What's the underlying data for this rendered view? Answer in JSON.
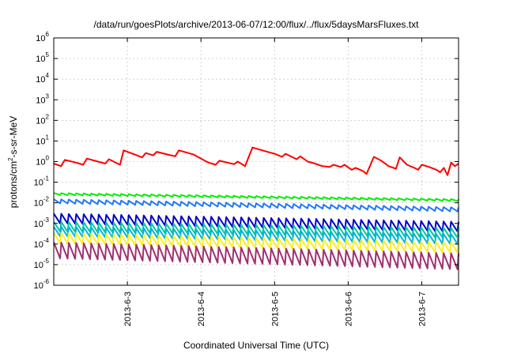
{
  "chart_data": {
    "type": "line",
    "title": "/data/run/goesPlots/archive/2013-06-07/12:00/flux/../flux/5daysMarsFluxes.txt",
    "xlabel": "Coordinated Universal Time (UTC)",
    "ylabel": {
      "base": "protons/cm",
      "sup": "2",
      "rest": "-s-sr-MeV"
    },
    "y_scale": "log",
    "ylim_exp": [
      -6,
      6
    ],
    "y_ticks": [
      {
        "base": "10",
        "exp": "-6",
        "e": -6
      },
      {
        "base": "10",
        "exp": "-5",
        "e": -5
      },
      {
        "base": "10",
        "exp": "-4",
        "e": -4
      },
      {
        "base": "10",
        "exp": "-3",
        "e": -3
      },
      {
        "base": "10",
        "exp": "-2",
        "e": -2
      },
      {
        "base": "10",
        "exp": "-1",
        "e": -1
      },
      {
        "base": "10",
        "exp": "0",
        "e": 0
      },
      {
        "base": "10",
        "exp": "1",
        "e": 1
      },
      {
        "base": "10",
        "exp": "2",
        "e": 2
      },
      {
        "base": "10",
        "exp": "3",
        "e": 3
      },
      {
        "base": "10",
        "exp": "4",
        "e": 4
      },
      {
        "base": "10",
        "exp": "5",
        "e": 5
      },
      {
        "base": "10",
        "exp": "6",
        "e": 6
      }
    ],
    "xlim": [
      "2013-06-02 00:00",
      "2013-06-07 12:00"
    ],
    "x_ticks": [
      "2013-6-3",
      "2013-6-4",
      "2013-6-5",
      "2013-6-6",
      "2013-6-7"
    ],
    "x_tick_dates": [
      "2013-06-03",
      "2013-06-04",
      "2013-06-05",
      "2013-06-06",
      "2013-06-07"
    ],
    "grid": true,
    "legend": "none",
    "series": [
      {
        "color": "#ff0000",
        "values": [
          [
            "2013-06-02 00:00",
            0.8
          ],
          [
            "2013-06-02 02:24",
            0.6
          ],
          [
            "2013-06-02 03:36",
            1.2
          ],
          [
            "2013-06-02 07:12",
            0.9
          ],
          [
            "2013-06-02 09:36",
            0.7
          ],
          [
            "2013-06-02 10:48",
            1.4
          ],
          [
            "2013-06-02 14:24",
            1.0
          ],
          [
            "2013-06-02 16:48",
            0.8
          ],
          [
            "2013-06-02 18:00",
            1.3
          ],
          [
            "2013-06-02 21:36",
            0.7
          ],
          [
            "2013-06-02 22:48",
            3.5
          ],
          [
            "2013-06-03 02:24",
            2.2
          ],
          [
            "2013-06-03 04:48",
            1.6
          ],
          [
            "2013-06-03 06:00",
            2.6
          ],
          [
            "2013-06-03 08:24",
            2.0
          ],
          [
            "2013-06-03 09:36",
            3.0
          ],
          [
            "2013-06-03 13:12",
            2.2
          ],
          [
            "2013-06-03 15:36",
            1.8
          ],
          [
            "2013-06-03 16:48",
            3.5
          ],
          [
            "2013-06-03 21:36",
            2.2
          ],
          [
            "2013-06-04 00:00",
            1.4
          ],
          [
            "2013-06-04 02:24",
            0.9
          ],
          [
            "2013-06-04 04:48",
            0.7
          ],
          [
            "2013-06-04 06:00",
            1.1
          ],
          [
            "2013-06-04 10:48",
            0.75
          ],
          [
            "2013-06-04 12:00",
            1.0
          ],
          [
            "2013-06-04 14:24",
            0.6
          ],
          [
            "2013-06-04 16:48",
            4.8
          ],
          [
            "2013-06-04 21:36",
            3.0
          ],
          [
            "2013-06-05 00:00",
            2.4
          ],
          [
            "2013-06-05 02:24",
            1.7
          ],
          [
            "2013-06-05 03:36",
            2.4
          ],
          [
            "2013-06-05 07:12",
            1.3
          ],
          [
            "2013-06-05 08:24",
            1.8
          ],
          [
            "2013-06-05 10:48",
            1.0
          ],
          [
            "2013-06-05 13:12",
            0.8
          ],
          [
            "2013-06-05 15:36",
            0.6
          ],
          [
            "2013-06-05 18:00",
            0.55
          ],
          [
            "2013-06-05 19:12",
            0.7
          ],
          [
            "2013-06-05 21:36",
            0.55
          ],
          [
            "2013-06-05 22:48",
            0.7
          ],
          [
            "2013-06-06 01:12",
            0.4
          ],
          [
            "2013-06-06 02:24",
            0.5
          ],
          [
            "2013-06-06 04:48",
            0.35
          ],
          [
            "2013-06-06 06:00",
            0.25
          ],
          [
            "2013-06-06 08:24",
            1.7
          ],
          [
            "2013-06-06 10:48",
            1.1
          ],
          [
            "2013-06-06 13:12",
            0.6
          ],
          [
            "2013-06-06 15:36",
            0.45
          ],
          [
            "2013-06-06 16:48",
            1.6
          ],
          [
            "2013-06-06 19:12",
            0.7
          ],
          [
            "2013-06-06 21:36",
            0.5
          ],
          [
            "2013-06-06 22:48",
            0.4
          ],
          [
            "2013-06-07 00:00",
            0.7
          ],
          [
            "2013-06-07 02:24",
            0.55
          ],
          [
            "2013-06-07 04:48",
            0.4
          ],
          [
            "2013-06-07 06:00",
            0.3
          ],
          [
            "2013-06-07 07:12",
            0.5
          ],
          [
            "2013-06-07 08:24",
            0.22
          ],
          [
            "2013-06-07 09:36",
            0.9
          ],
          [
            "2013-06-07 10:48",
            0.6
          ],
          [
            "2013-06-07 12:00",
            0.8
          ]
        ]
      },
      {
        "color": "#00ee00",
        "shape": "sawtooth",
        "start": 0.03,
        "end": 0.015,
        "amp": 1.25
      },
      {
        "color": "#1e78ff",
        "shape": "sawtooth",
        "start": 0.015,
        "end": 0.006,
        "amp": 1.6
      },
      {
        "color": "#0000cc",
        "shape": "sawtooth",
        "start": 0.003,
        "end": 0.0012,
        "amp": 3.0
      },
      {
        "color": "#00c8a0",
        "shape": "sawtooth",
        "start": 0.0012,
        "end": 0.0006,
        "amp": 3.0
      },
      {
        "color": "#00b4d8",
        "shape": "sawtooth",
        "start": 0.0007,
        "end": 0.0003,
        "amp": 3.0
      },
      {
        "color": "#ffee22",
        "shape": "sawtooth",
        "start": 0.00035,
        "end": 0.00012,
        "amp": 3.2
      },
      {
        "color": "#a03070",
        "shape": "sawtooth",
        "start": 0.00012,
        "end": 3.5e-05,
        "amp": 6.0
      }
    ]
  }
}
